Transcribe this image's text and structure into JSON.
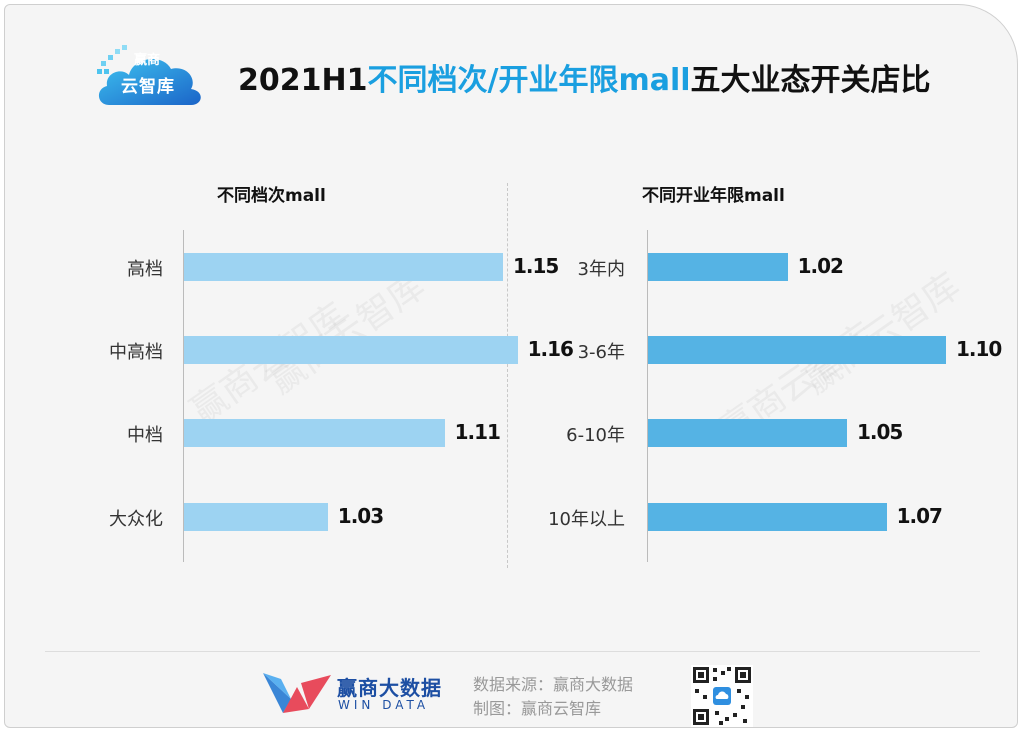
{
  "logo": {
    "line1": "赢商",
    "line2": "云智库"
  },
  "title": {
    "prefix": "2021H1",
    "highlight": "不同档次/开业年限mall",
    "suffix": "五大业态开关店比"
  },
  "watermark": "赢商云智库",
  "footer": {
    "brand": "赢商大数据",
    "brand_en": "WIN DATA",
    "source": "数据来源：赢商大数据",
    "made_by": "制图：赢商云智库"
  },
  "colors": {
    "left_bar": "#9dd3f2",
    "right_bar": "#55b3e4",
    "title_highlight": "#1a9fe0"
  },
  "chart_data": [
    {
      "type": "bar",
      "orientation": "horizontal",
      "title": "不同档次mall",
      "categories": [
        "高档",
        "中高档",
        "中档",
        "大众化"
      ],
      "values": [
        1.15,
        1.16,
        1.11,
        1.03
      ],
      "labels": [
        "1.15",
        "1.16",
        "1.11",
        "1.03"
      ]
    },
    {
      "type": "bar",
      "orientation": "horizontal",
      "title": "不同开业年限mall",
      "categories": [
        "3年内",
        "3-6年",
        "6-10年",
        "10年以上"
      ],
      "values": [
        1.02,
        1.1,
        1.05,
        1.07
      ],
      "labels": [
        "1.02",
        "1.10",
        "1.05",
        "1.07"
      ]
    }
  ]
}
